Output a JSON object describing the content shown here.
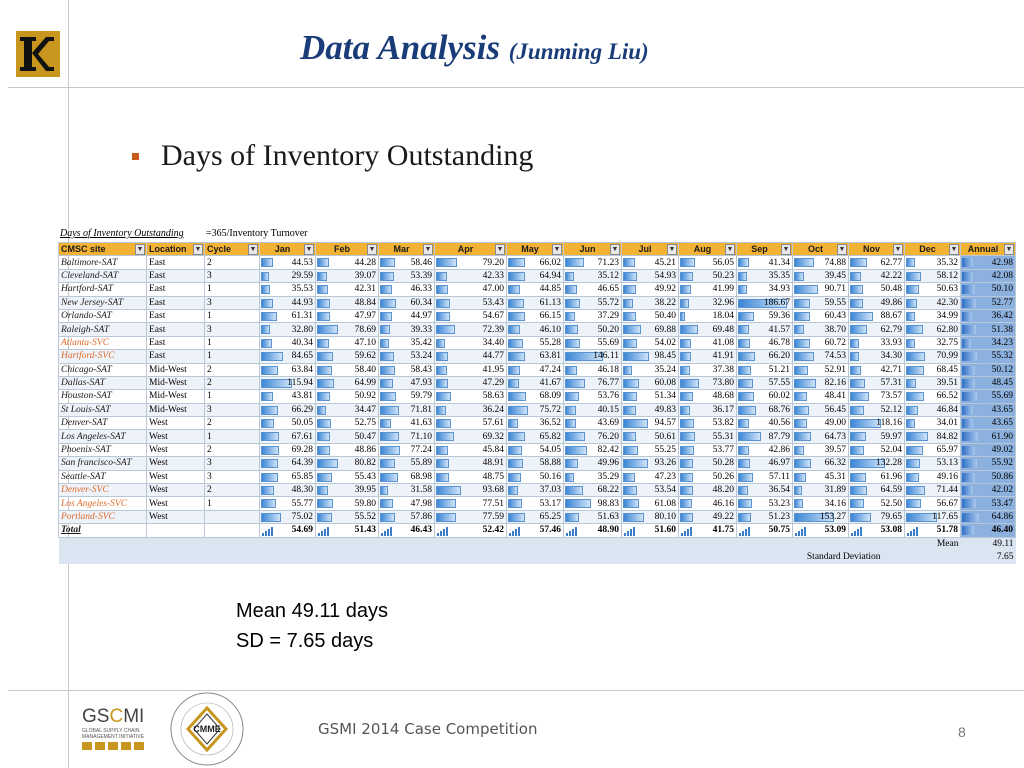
{
  "header": {
    "title_main": "Data Analysis",
    "title_sub": "(Junming Liu)"
  },
  "bullet": {
    "text": "Days of Inventory Outstanding"
  },
  "sheet": {
    "caption": "Days of Inventory Outstanding",
    "formula": "=365/Inventory Turnover",
    "columns": [
      "CMSC site",
      "Location",
      "Cycle",
      "Jan",
      "Feb",
      "Mar",
      "Apr",
      "May",
      "Jun",
      "Jul",
      "Aug",
      "Sep",
      "Oct",
      "Nov",
      "Dec",
      "Annual"
    ],
    "rows": [
      {
        "site": "Baltimore-SAT",
        "svc": false,
        "loc": "East",
        "cycle": "2",
        "m": [
          "44.53",
          "44.28",
          "58.46",
          "79.20",
          "66.02",
          "71.23",
          "45.21",
          "56.05",
          "41.34",
          "74.88",
          "62.77",
          "35.32"
        ],
        "annual": "42.98"
      },
      {
        "site": "Cleveland-SAT",
        "svc": false,
        "loc": "East",
        "cycle": "3",
        "m": [
          "29.59",
          "39.07",
          "53.39",
          "42.33",
          "64.94",
          "35.12",
          "54.93",
          "50.23",
          "35.35",
          "39.45",
          "42.22",
          "58.12"
        ],
        "annual": "42.08"
      },
      {
        "site": "Hartford-SAT",
        "svc": false,
        "loc": "East",
        "cycle": "1",
        "m": [
          "35.53",
          "42.31",
          "46.33",
          "47.00",
          "44.85",
          "46.65",
          "49.92",
          "41.99",
          "34.93",
          "90.71",
          "50.48",
          "50.63"
        ],
        "annual": "50.10"
      },
      {
        "site": "New Jersey-SAT",
        "svc": false,
        "loc": "East",
        "cycle": "3",
        "m": [
          "44.93",
          "48.84",
          "60.34",
          "53.43",
          "61.13",
          "55.72",
          "38.22",
          "32.96",
          "186.67",
          "59.55",
          "49.86",
          "42.30"
        ],
        "annual": "52.77"
      },
      {
        "site": "Orlando-SAT",
        "svc": false,
        "loc": "East",
        "cycle": "1",
        "m": [
          "61.31",
          "47.97",
          "44.97",
          "54.67",
          "66.15",
          "37.29",
          "50.40",
          "18.04",
          "59.36",
          "60.43",
          "88.67",
          "34.99"
        ],
        "annual": "36.42"
      },
      {
        "site": "Raleigh-SAT",
        "svc": false,
        "loc": "East",
        "cycle": "3",
        "m": [
          "32.80",
          "78.69",
          "39.33",
          "72.39",
          "46.10",
          "50.20",
          "69.88",
          "69.48",
          "41.57",
          "38.70",
          "62.79",
          "62.80"
        ],
        "annual": "51.38"
      },
      {
        "site": "Atlanta-SVC",
        "svc": true,
        "loc": "East",
        "cycle": "1",
        "m": [
          "40.34",
          "47.10",
          "35.42",
          "34.40",
          "55.28",
          "55.69",
          "54.02",
          "41.08",
          "46.78",
          "60.72",
          "33.93",
          "32.75"
        ],
        "annual": "34.23"
      },
      {
        "site": "Hartford-SVC",
        "svc": true,
        "loc": "East",
        "cycle": "1",
        "m": [
          "84.65",
          "59.62",
          "53.24",
          "44.77",
          "63.81",
          "146.11",
          "98.45",
          "41.91",
          "66.20",
          "74.53",
          "34.30",
          "70.99"
        ],
        "annual": "55.32"
      },
      {
        "site": "Chicago-SAT",
        "svc": false,
        "loc": "Mid-West",
        "cycle": "2",
        "m": [
          "63.84",
          "58.40",
          "58.43",
          "41.95",
          "47.24",
          "46.18",
          "35.24",
          "37.38",
          "51.21",
          "52.91",
          "42.71",
          "68.45"
        ],
        "annual": "50.12"
      },
      {
        "site": "Dallas-SAT",
        "svc": false,
        "loc": "Mid-West",
        "cycle": "2",
        "m": [
          "115.94",
          "64.99",
          "47.93",
          "47.29",
          "41.67",
          "76.77",
          "60.08",
          "73.80",
          "57.55",
          "82.16",
          "57.31",
          "39.51"
        ],
        "annual": "48.45"
      },
      {
        "site": "Houston-SAT",
        "svc": false,
        "loc": "Mid-West",
        "cycle": "1",
        "m": [
          "43.81",
          "50.92",
          "59.79",
          "58.63",
          "68.09",
          "53.76",
          "51.34",
          "48.68",
          "60.02",
          "48.41",
          "73.57",
          "66.52"
        ],
        "annual": "55.69"
      },
      {
        "site": "St Louis-SAT",
        "svc": false,
        "loc": "Mid-West",
        "cycle": "3",
        "m": [
          "66.29",
          "34.47",
          "71.81",
          "36.24",
          "75.72",
          "40.15",
          "49.83",
          "36.17",
          "68.76",
          "56.45",
          "52.12",
          "46.84"
        ],
        "annual": "43.65"
      },
      {
        "site": "Denver-SAT",
        "svc": false,
        "loc": "West",
        "cycle": "2",
        "m": [
          "50.05",
          "52.75",
          "41.63",
          "57.61",
          "36.52",
          "43.69",
          "94.57",
          "53.82",
          "40.56",
          "49.00",
          "118.16",
          "34.01"
        ],
        "annual": "43.65"
      },
      {
        "site": "Los Angeles-SAT",
        "svc": false,
        "loc": "West",
        "cycle": "1",
        "m": [
          "67.61",
          "50.47",
          "71.10",
          "69.32",
          "65.82",
          "76.20",
          "50.61",
          "55.31",
          "87.79",
          "64.73",
          "59.97",
          "84.82"
        ],
        "annual": "61.90"
      },
      {
        "site": "Phoenix-SAT",
        "svc": false,
        "loc": "West",
        "cycle": "2",
        "m": [
          "69.28",
          "48.86",
          "77.24",
          "45.84",
          "54.05",
          "82.42",
          "55.25",
          "53.77",
          "42.86",
          "39.57",
          "52.04",
          "65.97"
        ],
        "annual": "49.02"
      },
      {
        "site": "San francisco-SAT",
        "svc": false,
        "loc": "West",
        "cycle": "3",
        "m": [
          "64.39",
          "80.82",
          "55.89",
          "48.91",
          "58.88",
          "49.96",
          "93.26",
          "50.28",
          "46.97",
          "66.32",
          "132.28",
          "53.13"
        ],
        "annual": "55.92"
      },
      {
        "site": "Seattle-SAT",
        "svc": false,
        "loc": "West",
        "cycle": "3",
        "m": [
          "65.85",
          "55.43",
          "68.98",
          "48.75",
          "50.16",
          "35.29",
          "47.23",
          "50.26",
          "57.11",
          "45.31",
          "61.96",
          "49.16"
        ],
        "annual": "50.86"
      },
      {
        "site": "Denver-SVC",
        "svc": true,
        "loc": "West",
        "cycle": "2",
        "m": [
          "48.30",
          "39.95",
          "31.58",
          "93.68",
          "37.03",
          "68.22",
          "53.54",
          "48.20",
          "36.54",
          "31.89",
          "64.59",
          "71.44"
        ],
        "annual": "42.02"
      },
      {
        "site": "Los Angeles-SVC",
        "svc": true,
        "loc": "West",
        "cycle": "1",
        "m": [
          "55.77",
          "59.80",
          "47.98",
          "77.51",
          "53.17",
          "98.83",
          "61.08",
          "46.16",
          "53.23",
          "34.16",
          "52.50",
          "56.67"
        ],
        "annual": "53.47"
      },
      {
        "site": "Portland-SVC",
        "svc": true,
        "loc": "West",
        "cycle": "",
        "m": [
          "75.02",
          "55.52",
          "57.86",
          "77.59",
          "65.25",
          "51.63",
          "80.10",
          "49.22",
          "51.23",
          "153.27",
          "79.65",
          "117.65"
        ],
        "annual": "64.86"
      }
    ],
    "total": {
      "label": "Total",
      "m": [
        "54.69",
        "51.43",
        "46.43",
        "52.42",
        "57.46",
        "48.90",
        "51.60",
        "41.75",
        "50.75",
        "53.09",
        "53.08",
        "51.78"
      ],
      "annual": "46.40"
    },
    "mean_label": "Mean",
    "mean_value": "49.11",
    "sd_label": "Standard Deviation",
    "sd_value": "7.65"
  },
  "stats": {
    "mean_line": "Mean 49.11 days",
    "sd_line": "SD = 7.65 days"
  },
  "footer": {
    "gscmi_text": "GSCMI",
    "gscmi_sub": "GLOBAL SUPPLY CHAIN MANAGEMENT INITIATIVE",
    "cmme_text": "CMME",
    "competition": "GSMI 2014 Case Competition",
    "page": "8"
  },
  "colors": {
    "title": "#1a3d7a",
    "header_fill": "#f2b233",
    "svc_text": "#e06a28",
    "annual_fill": "#8db1de",
    "bar": "#3b86d6",
    "accent": "#c8961e"
  }
}
